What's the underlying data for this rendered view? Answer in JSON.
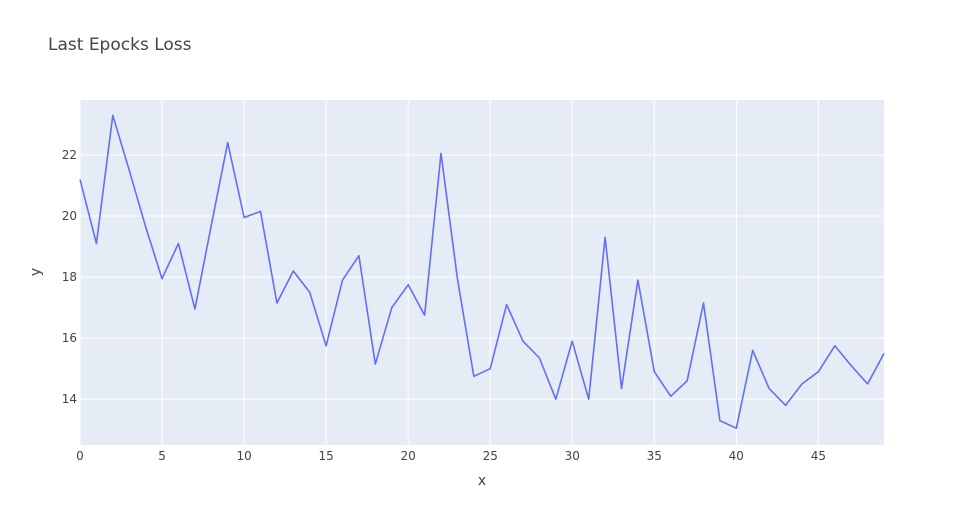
{
  "chart_data": {
    "type": "line",
    "title": "Last Epocks Loss",
    "xlabel": "x",
    "ylabel": "y",
    "xlim": [
      0,
      49
    ],
    "ylim": [
      12.5,
      23.8
    ],
    "x_ticks": [
      0,
      5,
      10,
      15,
      20,
      25,
      30,
      35,
      40,
      45
    ],
    "y_ticks": [
      14,
      16,
      18,
      20,
      22
    ],
    "grid": true,
    "colors": {
      "line": "#636efa",
      "plot_bg": "#e5ecf6",
      "grid": "#ffffff",
      "text": "#444444"
    },
    "series": [
      {
        "x": [
          0,
          1,
          2,
          3,
          4,
          5,
          6,
          7,
          8,
          9,
          10,
          11,
          12,
          13,
          14,
          15,
          16,
          17,
          18,
          19,
          20,
          21,
          22,
          23,
          24,
          25,
          26,
          27,
          28,
          29,
          30,
          31,
          32,
          33,
          34,
          35,
          36,
          37,
          38,
          39,
          40,
          41,
          42,
          43,
          44,
          45,
          46,
          47,
          48,
          49
        ],
        "values": [
          21.2,
          19.1,
          23.3,
          21.5,
          19.65,
          17.95,
          19.1,
          16.95,
          19.7,
          22.4,
          19.95,
          20.15,
          17.15,
          18.2,
          17.5,
          15.75,
          17.9,
          18.7,
          15.15,
          17.0,
          17.75,
          16.75,
          22.05,
          17.95,
          14.75,
          15.0,
          17.1,
          15.9,
          15.35,
          14.0,
          15.9,
          14.0,
          19.3,
          14.35,
          17.9,
          14.9,
          14.1,
          14.6,
          17.15,
          13.3,
          13.05,
          15.6,
          14.35,
          13.8,
          14.5,
          14.9,
          15.75,
          15.1,
          14.5,
          15.5
        ]
      }
    ]
  }
}
